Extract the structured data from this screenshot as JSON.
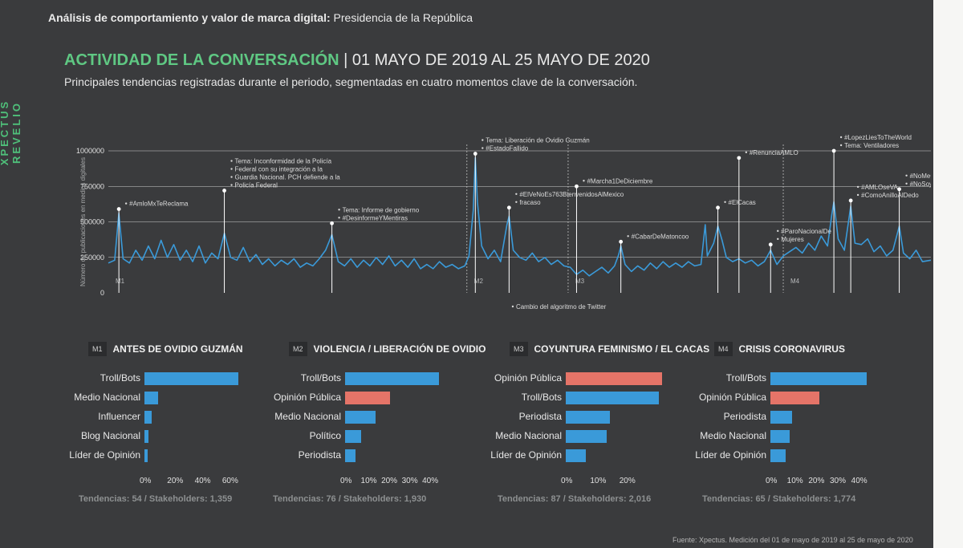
{
  "brand": "XPECTUS REVELIO",
  "header": {
    "bold": "Análisis de comportamiento y valor de marca digital:",
    "rest": " Presidencia de la República"
  },
  "title": {
    "highlight": "ACTIVIDAD DE LA CONVERSACIÓN",
    "rest": " | 01 MAYO DE 2019 AL 25 MAYO DE 2020"
  },
  "subtitle": "Principales tendencias registradas durante el periodo, segmentadas en cuatro momentos clave de la conversación.",
  "colors": {
    "blue": "#3a9ad9",
    "salmon": "#e57468",
    "green": "#5fc883"
  },
  "chart_data": [
    {
      "type": "line",
      "ylabel": "Número de publicaciones en medios digitales",
      "ylim": [
        0,
        1000000
      ],
      "yticks": [
        "1000000",
        "750000",
        "500000",
        "250000",
        "0"
      ],
      "x_range": [
        0,
        390
      ],
      "segments": [
        {
          "tag": "M1",
          "x": 0
        },
        {
          "tag": "M2",
          "x": 170
        },
        {
          "tag": "M3",
          "x": 218
        },
        {
          "tag": "M4",
          "x": 320
        }
      ],
      "keypoints": [
        [
          0,
          210000
        ],
        [
          3,
          230000
        ],
        [
          5,
          560000
        ],
        [
          7,
          240000
        ],
        [
          10,
          210000
        ],
        [
          13,
          300000
        ],
        [
          16,
          230000
        ],
        [
          19,
          330000
        ],
        [
          22,
          240000
        ],
        [
          25,
          370000
        ],
        [
          28,
          250000
        ],
        [
          31,
          340000
        ],
        [
          34,
          230000
        ],
        [
          37,
          300000
        ],
        [
          40,
          220000
        ],
        [
          43,
          330000
        ],
        [
          46,
          210000
        ],
        [
          49,
          280000
        ],
        [
          52,
          240000
        ],
        [
          55,
          420000
        ],
        [
          58,
          250000
        ],
        [
          61,
          230000
        ],
        [
          64,
          320000
        ],
        [
          67,
          220000
        ],
        [
          70,
          270000
        ],
        [
          73,
          200000
        ],
        [
          76,
          240000
        ],
        [
          79,
          190000
        ],
        [
          82,
          230000
        ],
        [
          85,
          200000
        ],
        [
          88,
          240000
        ],
        [
          91,
          180000
        ],
        [
          94,
          210000
        ],
        [
          97,
          190000
        ],
        [
          100,
          240000
        ],
        [
          103,
          300000
        ],
        [
          106,
          410000
        ],
        [
          109,
          220000
        ],
        [
          112,
          190000
        ],
        [
          115,
          240000
        ],
        [
          118,
          180000
        ],
        [
          121,
          230000
        ],
        [
          124,
          190000
        ],
        [
          127,
          250000
        ],
        [
          130,
          200000
        ],
        [
          133,
          260000
        ],
        [
          136,
          190000
        ],
        [
          139,
          230000
        ],
        [
          142,
          180000
        ],
        [
          145,
          240000
        ],
        [
          148,
          170000
        ],
        [
          151,
          200000
        ],
        [
          154,
          170000
        ],
        [
          157,
          220000
        ],
        [
          160,
          180000
        ],
        [
          163,
          200000
        ],
        [
          166,
          170000
        ],
        [
          169,
          190000
        ],
        [
          171,
          260000
        ],
        [
          173,
          580000
        ],
        [
          174,
          950000
        ],
        [
          175,
          640000
        ],
        [
          177,
          330000
        ],
        [
          180,
          240000
        ],
        [
          183,
          300000
        ],
        [
          186,
          220000
        ],
        [
          189,
          480000
        ],
        [
          190,
          540000
        ],
        [
          192,
          300000
        ],
        [
          195,
          250000
        ],
        [
          198,
          230000
        ],
        [
          201,
          280000
        ],
        [
          204,
          220000
        ],
        [
          207,
          250000
        ],
        [
          210,
          200000
        ],
        [
          213,
          230000
        ],
        [
          216,
          190000
        ],
        [
          219,
          180000
        ],
        [
          222,
          130000
        ],
        [
          225,
          160000
        ],
        [
          228,
          120000
        ],
        [
          231,
          150000
        ],
        [
          234,
          180000
        ],
        [
          237,
          140000
        ],
        [
          240,
          190000
        ],
        [
          242,
          270000
        ],
        [
          243,
          330000
        ],
        [
          245,
          200000
        ],
        [
          248,
          150000
        ],
        [
          251,
          190000
        ],
        [
          254,
          160000
        ],
        [
          257,
          210000
        ],
        [
          260,
          170000
        ],
        [
          263,
          220000
        ],
        [
          266,
          180000
        ],
        [
          269,
          210000
        ],
        [
          272,
          180000
        ],
        [
          275,
          220000
        ],
        [
          278,
          190000
        ],
        [
          281,
          200000
        ],
        [
          283,
          480000
        ],
        [
          284,
          260000
        ],
        [
          287,
          350000
        ],
        [
          289,
          470000
        ],
        [
          291,
          370000
        ],
        [
          293,
          250000
        ],
        [
          296,
          220000
        ],
        [
          299,
          240000
        ],
        [
          302,
          210000
        ],
        [
          305,
          230000
        ],
        [
          308,
          190000
        ],
        [
          311,
          220000
        ],
        [
          314,
          300000
        ],
        [
          317,
          200000
        ],
        [
          320,
          260000
        ],
        [
          323,
          290000
        ],
        [
          326,
          320000
        ],
        [
          329,
          280000
        ],
        [
          332,
          350000
        ],
        [
          335,
          300000
        ],
        [
          338,
          400000
        ],
        [
          341,
          330000
        ],
        [
          343,
          550000
        ],
        [
          344,
          640000
        ],
        [
          346,
          380000
        ],
        [
          349,
          300000
        ],
        [
          352,
          610000
        ],
        [
          354,
          350000
        ],
        [
          357,
          340000
        ],
        [
          360,
          380000
        ],
        [
          363,
          290000
        ],
        [
          366,
          330000
        ],
        [
          369,
          260000
        ],
        [
          372,
          300000
        ],
        [
          375,
          470000
        ],
        [
          377,
          280000
        ],
        [
          380,
          240000
        ],
        [
          383,
          300000
        ],
        [
          386,
          220000
        ],
        [
          390,
          230000
        ]
      ],
      "annotations": [
        {
          "x": 5,
          "y": 590000,
          "lines": [
            "#AmloMxTeReclama"
          ]
        },
        {
          "x": 55,
          "y": 720000,
          "lines": [
            "Tema: Inconformidad de la Policía",
            "Federal con su integración a la",
            "Guardia Nacional. PCH defiende a la",
            "Policía Federal"
          ]
        },
        {
          "x": 106,
          "y": 490000,
          "lines": [
            "Tema: Informe de gobierno",
            "#DesinformeYMentiras"
          ]
        },
        {
          "x": 174,
          "y": 980000,
          "lines": [
            "Tema: Liberación de Ovidio Guzmán",
            "#EstadoFallido"
          ]
        },
        {
          "x": 190,
          "y": 600000,
          "lines": [
            "#ElVeNoEs763BienvenidosAlMexico",
            "fracaso"
          ]
        },
        {
          "x": 222,
          "y": 750000,
          "lines": [
            "#Marcha1DeDiciembre"
          ]
        },
        {
          "x": 243,
          "y": 360000,
          "lines": [
            "#CabarDeMatoncoo"
          ]
        },
        {
          "x": 289,
          "y": 600000,
          "lines": [
            "#ElCacas"
          ]
        },
        {
          "x": 299,
          "y": 950000,
          "lines": [
            "#RenunciaAMLO"
          ]
        },
        {
          "x": 314,
          "y": 340000,
          "lines": [
            "#ParoNacionalDe",
            "Mujeres"
          ]
        },
        {
          "x": 344,
          "y": 1000000,
          "lines": [
            "#LopezLiesToTheWorld",
            "Tema: Ventiladores"
          ]
        },
        {
          "x": 352,
          "y": 650000,
          "lines": [
            "#AMLOseVA",
            "#ComoAnilloAlDedo"
          ]
        },
        {
          "x": 375,
          "y": 730000,
          "lines": [
            "#NoMeGustaElMoore",
            "#NoSoyBotSoyCiudadano"
          ]
        }
      ],
      "footnote": "Cambio del algoritmo de Twitter"
    },
    {
      "type": "bar",
      "tag": "M1",
      "title": "ANTES DE OVIDIO GUZMÁN",
      "categories": [
        "Troll/Bots",
        "Medio Nacional",
        "Influencer",
        "Blog Nacional",
        "Líder de Opinión"
      ],
      "values": [
        68,
        10,
        5,
        3,
        2
      ],
      "colors": [
        "blue",
        "blue",
        "blue",
        "blue",
        "blue"
      ],
      "xlim": [
        0,
        70
      ],
      "xticks": [
        0,
        20,
        40,
        60
      ],
      "footer": {
        "tendencias_label": "Tendencias:",
        "tendencias": "54",
        "stakeholders_label": " / Stakeholders:",
        "stakeholders": "1,359"
      }
    },
    {
      "type": "bar",
      "tag": "M2",
      "title": "VIOLENCIA / LIBERACIÓN DE OVIDIO",
      "categories": [
        "Troll/Bots",
        "Opinión Pública",
        "Medio Nacional",
        "Político",
        "Periodista"
      ],
      "values": [
        46,
        22,
        15,
        8,
        5
      ],
      "colors": [
        "blue",
        "salmon",
        "blue",
        "blue",
        "blue"
      ],
      "xlim": [
        0,
        47
      ],
      "xticks": [
        0,
        10,
        20,
        30,
        40
      ],
      "footer": {
        "tendencias_label": "Tendencias:",
        "tendencias": "76",
        "stakeholders_label": " / Stakeholders:",
        "stakeholders": "1,930"
      }
    },
    {
      "type": "bar",
      "tag": "M3",
      "title": "COYUNTURA FEMINISMO / EL CACAS",
      "categories": [
        "Opinión Pública",
        "Troll/Bots",
        "Periodista",
        "Medio Nacional",
        "Líder de Opinión"
      ],
      "values": [
        33,
        32,
        15,
        14,
        7
      ],
      "colors": [
        "salmon",
        "blue",
        "blue",
        "blue",
        "blue"
      ],
      "xlim": [
        0,
        33
      ],
      "xticks": [
        0,
        10,
        20
      ],
      "footer": {
        "tendencias_label": "Tendencias:",
        "tendencias": "87",
        "stakeholders_label": " / Stakeholders:",
        "stakeholders": "2,016"
      }
    },
    {
      "type": "bar",
      "tag": "M4",
      "title": "CRISIS CORONAVIRUS",
      "categories": [
        "Troll/Bots",
        "Opinión Pública",
        "Periodista",
        "Medio Nacional",
        "Líder de Opinión"
      ],
      "values": [
        45,
        23,
        10,
        9,
        7
      ],
      "colors": [
        "blue",
        "salmon",
        "blue",
        "blue",
        "blue"
      ],
      "xlim": [
        0,
        45
      ],
      "xticks": [
        0,
        10,
        20,
        30,
        40
      ],
      "footer": {
        "tendencias_label": "Tendencias:",
        "tendencias": "65",
        "stakeholders_label": " / Stakeholders:",
        "stakeholders": "1,774"
      }
    }
  ],
  "source": "Fuente: Xpectus. Medición del 01 de mayo de 2019 al 25 de mayo de 2020"
}
